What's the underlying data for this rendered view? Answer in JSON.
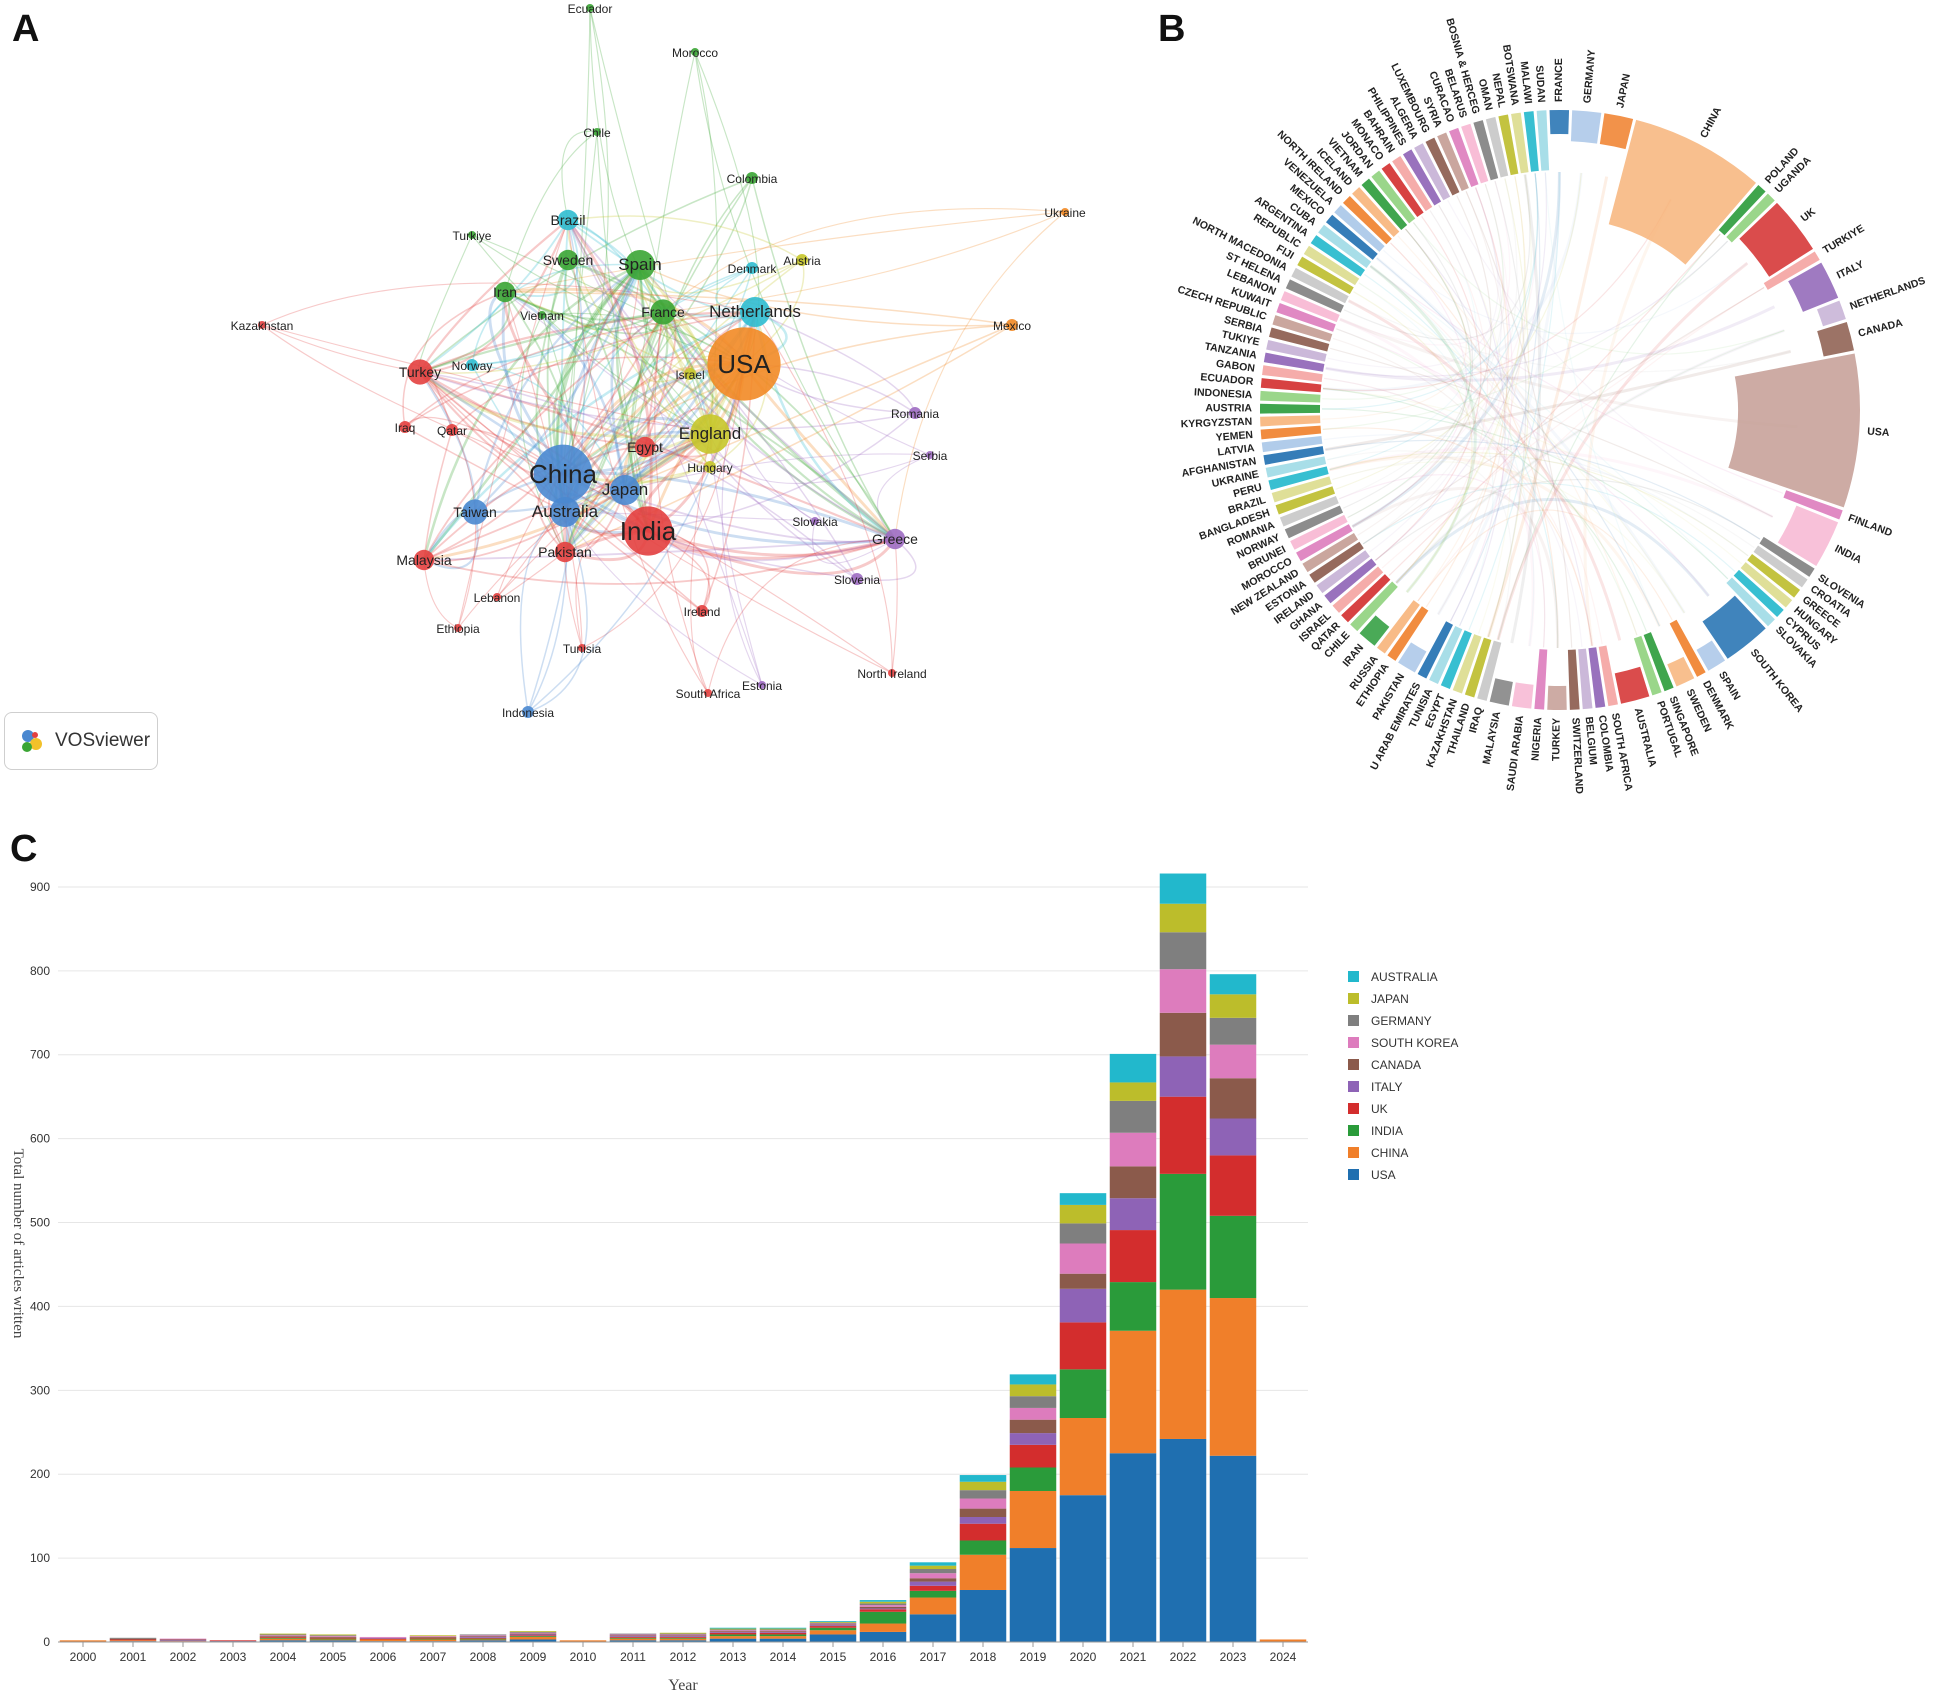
{
  "panels": {
    "a": "A",
    "b": "B",
    "c": "C"
  },
  "vosviewer_label": "VOSviewer",
  "colors": {
    "red": "#e3403f",
    "green": "#3aa534",
    "blue": "#4a88d0",
    "yellow": "#c6c62a",
    "purple": "#9d6cc2",
    "cyan": "#2fbcd0",
    "orange": "#f28a25"
  },
  "network": {
    "nodes": [
      {
        "label": "Ecuador",
        "group": "green",
        "size": 1
      },
      {
        "label": "Morocco",
        "group": "green",
        "size": 1
      },
      {
        "label": "Chile",
        "group": "green",
        "size": 1
      },
      {
        "label": "Colombia",
        "group": "green",
        "size": 2
      },
      {
        "label": "Ukraine",
        "group": "orange",
        "size": 1
      },
      {
        "label": "Brazil",
        "group": "cyan",
        "size": 3
      },
      {
        "label": "Turkiye",
        "group": "green",
        "size": 1
      },
      {
        "label": "Sweden",
        "group": "green",
        "size": 3
      },
      {
        "label": "Spain",
        "group": "green",
        "size": 5
      },
      {
        "label": "Austria",
        "group": "yellow",
        "size": 2
      },
      {
        "label": "Denmark",
        "group": "cyan",
        "size": 2
      },
      {
        "label": "Iran",
        "group": "green",
        "size": 3
      },
      {
        "label": "France",
        "group": "green",
        "size": 4
      },
      {
        "label": "Netherlands",
        "group": "cyan",
        "size": 5
      },
      {
        "label": "Kazakhstan",
        "group": "red",
        "size": 1
      },
      {
        "label": "Vietnam",
        "group": "green",
        "size": 1
      },
      {
        "label": "Mexico",
        "group": "orange",
        "size": 2
      },
      {
        "label": "Turkey",
        "group": "red",
        "size": 4
      },
      {
        "label": "Norway",
        "group": "cyan",
        "size": 2
      },
      {
        "label": "Israel",
        "group": "yellow",
        "size": 2
      },
      {
        "label": "USA",
        "group": "orange",
        "size": 14
      },
      {
        "label": "Romania",
        "group": "purple",
        "size": 2
      },
      {
        "label": "Iraq",
        "group": "red",
        "size": 2
      },
      {
        "label": "Qatar",
        "group": "red",
        "size": 2
      },
      {
        "label": "Egypt",
        "group": "red",
        "size": 3
      },
      {
        "label": "England",
        "group": "yellow",
        "size": 7
      },
      {
        "label": "Serbia",
        "group": "purple",
        "size": 1
      },
      {
        "label": "China",
        "group": "blue",
        "size": 11
      },
      {
        "label": "Hungary",
        "group": "yellow",
        "size": 2
      },
      {
        "label": "Japan",
        "group": "blue",
        "size": 5
      },
      {
        "label": "Taiwan",
        "group": "blue",
        "size": 4
      },
      {
        "label": "Australia",
        "group": "blue",
        "size": 5
      },
      {
        "label": "Slovakia",
        "group": "purple",
        "size": 1
      },
      {
        "label": "India",
        "group": "red",
        "size": 9
      },
      {
        "label": "Greece",
        "group": "purple",
        "size": 3
      },
      {
        "label": "Pakistan",
        "group": "red",
        "size": 3
      },
      {
        "label": "Malaysia",
        "group": "red",
        "size": 3
      },
      {
        "label": "Slovenia",
        "group": "purple",
        "size": 2
      },
      {
        "label": "Lebanon",
        "group": "red",
        "size": 1
      },
      {
        "label": "Ireland",
        "group": "red",
        "size": 2
      },
      {
        "label": "Ethiopia",
        "group": "red",
        "size": 1
      },
      {
        "label": "Tunisia",
        "group": "red",
        "size": 1
      },
      {
        "label": "North Ireland",
        "group": "red",
        "size": 1
      },
      {
        "label": "Estonia",
        "group": "purple",
        "size": 1
      },
      {
        "label": "South Africa",
        "group": "red",
        "size": 1
      },
      {
        "label": "Indonesia",
        "group": "blue",
        "size": 2
      }
    ]
  },
  "chord": {
    "countries": [
      "FRANCE",
      "GERMANY",
      "JAPAN",
      "CHINA",
      "POLAND",
      "UGANDA",
      "UK",
      "TURKIYE",
      "ITALY",
      "NETHERLANDS",
      "CANADA",
      "USA",
      "FINLAND",
      "INDIA",
      "SLOVENIA",
      "CROATIA",
      "GREECE",
      "HUNGARY",
      "CYPRUS",
      "SLOVAKIA",
      "SOUTH KOREA",
      "SPAIN",
      "DENMARK",
      "SWEDEN",
      "SINGAPORE",
      "PORTUGAL",
      "AUSTRALIA",
      "SOUTH AFRICA",
      "COLOMBIA",
      "BELGIUM",
      "SWITZERLAND",
      "TURKEY",
      "NIGERIA",
      "SAUDI ARABIA",
      "MALAYSIA",
      "IRAQ",
      "THAILAND",
      "KAZAKHSTAN",
      "EGYPT",
      "TUNISIA",
      "U ARAB EMIRATES",
      "PAKISTAN",
      "ETHIOPIA",
      "RUSSIA",
      "IRAN",
      "CHILE",
      "QATAR",
      "ISRAEL",
      "GHANA",
      "IRELAND",
      "ESTONIA",
      "NEW ZEALAND",
      "MOROCCO",
      "BRUNEI",
      "NORWAY",
      "ROMANIA",
      "BANGLADESH",
      "BRAZIL",
      "PERU",
      "UKRAINE",
      "AFGHANISTAN",
      "LATVIA",
      "YEMEN",
      "KYRGYZSTAN",
      "AUSTRIA",
      "INDONESIA",
      "ECUADOR",
      "GABON",
      "TANZANIA",
      "TUKIYE",
      "SERBIA",
      "CZECH REPUBLIC",
      "KUWAIT",
      "LEBANON",
      "ST HELENA",
      "NORTH MACEDONIA",
      "FIJI",
      "REPUBLIC",
      "ARGENTINA",
      "CUBA",
      "MEXICO",
      "VENEZUELA",
      "NORTH IRELAND",
      "ICELAND",
      "VIETNAM",
      "JORDAN",
      "MONACO",
      "BAHRAIN",
      "PHILIPPINES",
      "ALGERIA",
      "LUXEMBOURG",
      "SYRIA",
      "CURACAO",
      "BELARUS",
      "BOSNIA & HERCEG",
      "OMAN",
      "NEPAL",
      "BOTSWANA",
      "MALAWI",
      "SUDAN"
    ],
    "big": {
      "CHINA": 14,
      "USA": 16,
      "UK": 6,
      "INDIA": 5,
      "SOUTH KOREA": 5,
      "ITALY": 4,
      "JAPAN": 3,
      "GERMANY": 3,
      "FRANCE": 2,
      "CANADA": 3,
      "AUSTRALIA": 3,
      "SPAIN": 2,
      "NETHERLANDS": 2,
      "IRAN": 2,
      "PAKISTAN": 2,
      "MALAYSIA": 2,
      "TURKEY": 2,
      "SAUDI ARABIA": 2,
      "SWEDEN": 2
    }
  },
  "chart_data": {
    "type": "bar",
    "stacked": true,
    "title": "",
    "xlabel": "Year",
    "ylabel": "Total number of articles written",
    "ylim": [
      0,
      950
    ],
    "yticks": [
      0,
      100,
      200,
      300,
      400,
      500,
      600,
      700,
      800,
      900
    ],
    "categories": [
      "2000",
      "2001",
      "2002",
      "2003",
      "2004",
      "2005",
      "2006",
      "2007",
      "2008",
      "2009",
      "2010",
      "2011",
      "2012",
      "2013",
      "2014",
      "2015",
      "2016",
      "2017",
      "2018",
      "2019",
      "2020",
      "2021",
      "2022",
      "2023",
      "2024"
    ],
    "legend_position": "top-right",
    "series": [
      {
        "name": "USA",
        "color": "#1f6fb0",
        "values": [
          0,
          1,
          0,
          1,
          2,
          2,
          1,
          1,
          2,
          3,
          0,
          2,
          2,
          4,
          4,
          9,
          12,
          33,
          62,
          112,
          175,
          225,
          242,
          222,
          0
        ]
      },
      {
        "name": "CHINA",
        "color": "#f07f2a",
        "values": [
          2,
          1,
          1,
          0,
          2,
          1,
          2,
          2,
          1,
          3,
          2,
          2,
          2,
          3,
          3,
          5,
          10,
          20,
          42,
          68,
          92,
          146,
          178,
          188,
          3
        ]
      },
      {
        "name": "INDIA",
        "color": "#2a9b3a",
        "values": [
          0,
          0,
          0,
          0,
          1,
          1,
          0,
          1,
          1,
          1,
          0,
          1,
          1,
          2,
          2,
          3,
          14,
          8,
          17,
          28,
          58,
          58,
          138,
          98,
          0
        ]
      },
      {
        "name": "UK",
        "color": "#d32d2d",
        "values": [
          0,
          1,
          0,
          1,
          1,
          1,
          1,
          1,
          1,
          1,
          0,
          1,
          1,
          2,
          2,
          2,
          3,
          6,
          20,
          27,
          56,
          62,
          92,
          72,
          0
        ]
      },
      {
        "name": "ITALY",
        "color": "#8e63b6",
        "values": [
          0,
          0,
          1,
          0,
          0,
          0,
          1,
          0,
          1,
          1,
          0,
          1,
          1,
          1,
          1,
          1,
          1,
          5,
          8,
          14,
          40,
          38,
          48,
          44,
          0
        ]
      },
      {
        "name": "CANADA",
        "color": "#8b5a4b",
        "values": [
          0,
          1,
          1,
          0,
          1,
          1,
          0,
          1,
          1,
          1,
          0,
          1,
          1,
          1,
          1,
          1,
          2,
          4,
          10,
          16,
          18,
          38,
          52,
          48,
          0
        ]
      },
      {
        "name": "SOUTH KOREA",
        "color": "#dd7cbd",
        "values": [
          0,
          0,
          1,
          0,
          1,
          1,
          1,
          1,
          1,
          1,
          0,
          1,
          1,
          1,
          1,
          1,
          2,
          6,
          12,
          14,
          36,
          40,
          52,
          40,
          0
        ]
      },
      {
        "name": "GERMANY",
        "color": "#7f7f7f",
        "values": [
          0,
          1,
          0,
          0,
          1,
          1,
          0,
          0,
          1,
          1,
          0,
          1,
          1,
          1,
          1,
          1,
          2,
          5,
          10,
          14,
          24,
          38,
          44,
          32,
          0
        ]
      },
      {
        "name": "JAPAN",
        "color": "#bcbd2b",
        "values": [
          0,
          0,
          0,
          0,
          1,
          1,
          0,
          1,
          0,
          1,
          0,
          0,
          1,
          1,
          1,
          1,
          2,
          4,
          10,
          14,
          22,
          22,
          34,
          28,
          0
        ]
      },
      {
        "name": "AUSTRALIA",
        "color": "#22b8cc",
        "values": [
          0,
          0,
          0,
          0,
          0,
          0,
          0,
          0,
          0,
          0,
          0,
          0,
          0,
          1,
          1,
          1,
          2,
          4,
          8,
          12,
          14,
          34,
          36,
          24,
          0
        ]
      }
    ]
  }
}
